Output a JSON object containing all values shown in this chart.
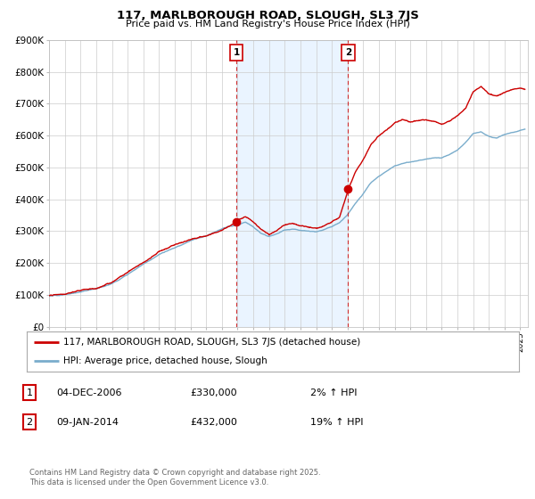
{
  "title": "117, MARLBOROUGH ROAD, SLOUGH, SL3 7JS",
  "subtitle": "Price paid vs. HM Land Registry's House Price Index (HPI)",
  "ylim": [
    0,
    900000
  ],
  "ytick_labels": [
    "£0",
    "£100K",
    "£200K",
    "£300K",
    "£400K",
    "£500K",
    "£600K",
    "£700K",
    "£800K",
    "£900K"
  ],
  "ytick_values": [
    0,
    100000,
    200000,
    300000,
    400000,
    500000,
    600000,
    700000,
    800000,
    900000
  ],
  "background_color": "#ffffff",
  "plot_bg_color": "#ffffff",
  "grid_color": "#cccccc",
  "line1_color": "#cc0000",
  "line2_color": "#7aadcc",
  "sale1_date": 2006.92,
  "sale1_price": 330000,
  "sale2_date": 2014.03,
  "sale2_price": 432000,
  "shade_color": "#ddeeff",
  "vline_color": "#cc0000",
  "legend_label1": "117, MARLBOROUGH ROAD, SLOUGH, SL3 7JS (detached house)",
  "legend_label2": "HPI: Average price, detached house, Slough",
  "table_row1": [
    "1",
    "04-DEC-2006",
    "£330,000",
    "2% ↑ HPI"
  ],
  "table_row2": [
    "2",
    "09-JAN-2014",
    "£432,000",
    "19% ↑ HPI"
  ],
  "footer": "Contains HM Land Registry data © Crown copyright and database right 2025.\nThis data is licensed under the Open Government Licence v3.0.",
  "xmin": 1995,
  "xmax": 2025.5,
  "hpi_segments": [
    [
      1995,
      97000
    ],
    [
      1996,
      100000
    ],
    [
      1997,
      108000
    ],
    [
      1998,
      118000
    ],
    [
      1999,
      135000
    ],
    [
      2000,
      165000
    ],
    [
      2001,
      200000
    ],
    [
      2002,
      230000
    ],
    [
      2003,
      250000
    ],
    [
      2004,
      270000
    ],
    [
      2005,
      285000
    ],
    [
      2006,
      305000
    ],
    [
      2007,
      320000
    ],
    [
      2007.5,
      330000
    ],
    [
      2008,
      315000
    ],
    [
      2008.5,
      295000
    ],
    [
      2009,
      285000
    ],
    [
      2009.5,
      295000
    ],
    [
      2010,
      308000
    ],
    [
      2010.5,
      312000
    ],
    [
      2011,
      308000
    ],
    [
      2011.5,
      305000
    ],
    [
      2012,
      302000
    ],
    [
      2012.5,
      308000
    ],
    [
      2013,
      318000
    ],
    [
      2013.5,
      330000
    ],
    [
      2014,
      355000
    ],
    [
      2014.5,
      390000
    ],
    [
      2015,
      420000
    ],
    [
      2015.5,
      455000
    ],
    [
      2016,
      475000
    ],
    [
      2016.5,
      490000
    ],
    [
      2017,
      505000
    ],
    [
      2017.5,
      510000
    ],
    [
      2018,
      515000
    ],
    [
      2018.5,
      520000
    ],
    [
      2019,
      525000
    ],
    [
      2019.5,
      528000
    ],
    [
      2020,
      530000
    ],
    [
      2020.5,
      540000
    ],
    [
      2021,
      555000
    ],
    [
      2021.5,
      580000
    ],
    [
      2022,
      610000
    ],
    [
      2022.5,
      615000
    ],
    [
      2023,
      600000
    ],
    [
      2023.5,
      595000
    ],
    [
      2024,
      605000
    ],
    [
      2024.5,
      610000
    ],
    [
      2025.3,
      620000
    ]
  ],
  "price_segments_before": [
    [
      1995,
      98000
    ],
    [
      1996,
      101000
    ],
    [
      1997,
      109000
    ],
    [
      1998,
      120000
    ],
    [
      1999,
      137000
    ],
    [
      2000,
      168000
    ],
    [
      2001,
      203000
    ],
    [
      2002,
      234000
    ],
    [
      2003,
      254000
    ],
    [
      2004,
      275000
    ],
    [
      2005,
      290000
    ],
    [
      2006,
      310000
    ],
    [
      2006.5,
      322000
    ],
    [
      2006.92,
      330000
    ]
  ],
  "price_segments_between": [
    [
      2006.92,
      330000
    ],
    [
      2007,
      340000
    ],
    [
      2007.5,
      350000
    ],
    [
      2008,
      335000
    ],
    [
      2008.5,
      310000
    ],
    [
      2009,
      295000
    ],
    [
      2009.5,
      308000
    ],
    [
      2010,
      325000
    ],
    [
      2010.5,
      328000
    ],
    [
      2011,
      322000
    ],
    [
      2011.5,
      318000
    ],
    [
      2012,
      315000
    ],
    [
      2012.5,
      323000
    ],
    [
      2013,
      335000
    ],
    [
      2013.5,
      350000
    ],
    [
      2014.03,
      432000
    ]
  ],
  "price_segments_after": [
    [
      2014.03,
      432000
    ],
    [
      2014.5,
      490000
    ],
    [
      2015,
      530000
    ],
    [
      2015.5,
      575000
    ],
    [
      2016,
      600000
    ],
    [
      2016.5,
      615000
    ],
    [
      2017,
      640000
    ],
    [
      2017.5,
      650000
    ],
    [
      2018,
      640000
    ],
    [
      2018.5,
      645000
    ],
    [
      2019,
      650000
    ],
    [
      2019.5,
      645000
    ],
    [
      2020,
      640000
    ],
    [
      2020.5,
      650000
    ],
    [
      2021,
      665000
    ],
    [
      2021.5,
      690000
    ],
    [
      2022,
      740000
    ],
    [
      2022.5,
      755000
    ],
    [
      2023,
      730000
    ],
    [
      2023.5,
      725000
    ],
    [
      2024,
      735000
    ],
    [
      2024.5,
      745000
    ],
    [
      2025.0,
      750000
    ],
    [
      2025.3,
      745000
    ]
  ]
}
